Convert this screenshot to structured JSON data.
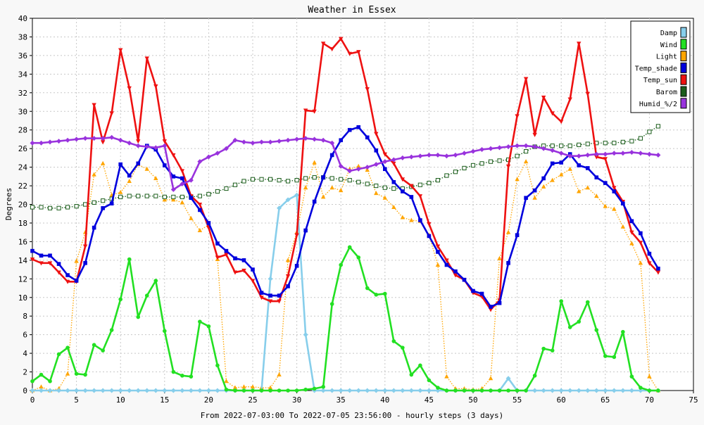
{
  "chart_data": {
    "type": "line",
    "title": "Weather in Essex",
    "xlabel": "From 2022-07-03:00 To 2022-07-05 23:56:00 - hourly steps (3 days)",
    "ylabel": "Degrees",
    "xlim": [
      0,
      75
    ],
    "ylim": [
      0,
      40
    ],
    "xticks": [
      0,
      5,
      10,
      15,
      20,
      25,
      30,
      35,
      40,
      45,
      50,
      55,
      60,
      65,
      70,
      75
    ],
    "yticks": [
      0,
      2,
      4,
      6,
      8,
      10,
      12,
      14,
      16,
      18,
      20,
      22,
      24,
      26,
      28,
      30,
      32,
      34,
      36,
      38,
      40
    ],
    "grid": true,
    "legend_position": "top-right",
    "x": [
      0,
      1,
      2,
      3,
      4,
      5,
      6,
      7,
      8,
      9,
      10,
      11,
      12,
      13,
      14,
      15,
      16,
      17,
      18,
      19,
      20,
      21,
      22,
      23,
      24,
      25,
      26,
      27,
      28,
      29,
      30,
      31,
      32,
      33,
      34,
      35,
      36,
      37,
      38,
      39,
      40,
      41,
      42,
      43,
      44,
      45,
      46,
      47,
      48,
      49,
      50,
      51,
      52,
      53,
      54,
      55,
      56,
      57,
      58,
      59,
      60,
      61,
      62,
      63,
      64,
      65,
      66,
      67,
      68,
      69,
      70,
      71
    ],
    "series": [
      {
        "name": "Damp",
        "color": "#87ceeb",
        "marker": "star",
        "values": [
          0,
          0,
          0,
          0,
          0,
          0,
          0,
          0,
          0,
          0,
          0,
          0,
          0,
          0,
          0,
          0,
          0,
          0,
          0,
          0,
          0,
          0,
          0,
          0,
          0,
          0,
          0,
          12,
          19.6,
          20.5,
          21,
          6,
          0,
          0,
          0,
          0,
          0,
          0,
          0,
          0,
          0,
          0,
          0,
          0,
          0,
          0,
          0,
          0,
          0,
          0,
          0,
          0,
          0,
          0,
          1.3,
          0,
          0,
          0,
          0,
          0,
          0,
          0,
          0,
          0,
          0,
          0,
          0,
          0,
          0,
          0,
          0,
          0
        ]
      },
      {
        "name": "Wind",
        "color": "#22e022",
        "marker": "circle",
        "values": [
          1,
          1.7,
          1,
          3.9,
          4.6,
          1.8,
          1.7,
          4.9,
          4.3,
          6.5,
          9.8,
          14.1,
          7.9,
          10.2,
          11.8,
          6.4,
          2,
          1.6,
          1.5,
          7.4,
          6.9,
          2.7,
          0.1,
          0,
          0,
          0,
          0,
          0,
          0,
          0,
          0,
          0.1,
          0.2,
          0.4,
          9.3,
          13.5,
          15.4,
          14.3,
          11,
          10.3,
          10.4,
          5.3,
          4.6,
          1.7,
          2.7,
          1.1,
          0.3,
          0,
          0,
          0,
          0,
          0,
          0,
          0,
          0,
          0,
          0,
          1.6,
          4.5,
          4.3,
          9.6,
          6.8,
          7.4,
          9.5,
          6.5,
          3.7,
          3.6,
          6.3,
          1.5,
          0.3,
          0,
          0
        ]
      },
      {
        "name": "Light",
        "color": "#ffa500",
        "marker": "triangle",
        "values": [
          0,
          0.4,
          0,
          0.2,
          1.8,
          13.9,
          17,
          23.2,
          24.4,
          21,
          21.3,
          22.5,
          24.3,
          23.8,
          22.8,
          20.5,
          20.5,
          20.2,
          18.5,
          17.2,
          17.8,
          14.1,
          1,
          0.3,
          0.4,
          0.4,
          0.3,
          0.3,
          1.7,
          14,
          17,
          21.8,
          24.5,
          20.8,
          21.8,
          21.5,
          23.8,
          24.1,
          23.7,
          21.2,
          20.7,
          19.7,
          18.6,
          18.3,
          18.2,
          16.7,
          13.5,
          1.5,
          0.2,
          0.2,
          0.1,
          0.2,
          1.3,
          14.2,
          17,
          22.7,
          24.6,
          20.7,
          21.9,
          22.6,
          23.2,
          23.8,
          21.4,
          21.8,
          20.9,
          19.8,
          19.5,
          17.6,
          15.8,
          13.7,
          1.5,
          0
        ]
      },
      {
        "name": "Temp_shade",
        "color": "#0000dd",
        "marker": "square",
        "values": [
          15,
          14.5,
          14.5,
          13.6,
          12.4,
          11.8,
          13.7,
          17.5,
          19.6,
          20.1,
          24.3,
          23.1,
          24.4,
          26.3,
          25.9,
          24.2,
          23,
          22.8,
          20.7,
          19.4,
          18,
          15.8,
          15,
          14.2,
          14,
          13,
          10.5,
          10.2,
          10.2,
          11.2,
          13.4,
          17.2,
          20.3,
          22.9,
          25.3,
          26.9,
          28,
          28.3,
          27.2,
          25.8,
          23.8,
          22.4,
          21.4,
          20.8,
          18.3,
          16.6,
          14.9,
          13.5,
          12.8,
          11.9,
          10.7,
          10.4,
          9,
          9.4,
          13.7,
          16.7,
          20.7,
          21.5,
          22.8,
          24.4,
          24.5,
          25.4,
          24.2,
          23.9,
          22.9,
          22.3,
          21.4,
          20.1,
          18.2,
          16.9,
          14.7,
          13.1
        ]
      },
      {
        "name": "Temp_sun",
        "color": "#ee1111",
        "marker": "invtriangle",
        "values": [
          14.1,
          13.7,
          13.7,
          12.7,
          11.7,
          11.7,
          15.5,
          30.7,
          26.7,
          29.8,
          36.6,
          32.5,
          26.8,
          35.7,
          32.7,
          26.8,
          25.3,
          23.6,
          20.9,
          20,
          17.5,
          14.3,
          14.6,
          12.7,
          12.9,
          11.8,
          10,
          9.6,
          9.6,
          12.3,
          16.7,
          30.1,
          30,
          37.3,
          36.7,
          37.8,
          36.2,
          36.4,
          32.4,
          27.6,
          25.4,
          24.4,
          22.7,
          22,
          20.9,
          17.9,
          15.5,
          14,
          12.4,
          11.9,
          10.5,
          10.1,
          8.7,
          9.7,
          24.1,
          29.5,
          33.5,
          27.5,
          31.5,
          29.8,
          28.9,
          31.3,
          37.3,
          31.9,
          25.1,
          24.9,
          21.8,
          20.3,
          17,
          15.9,
          13.7,
          12.7
        ]
      },
      {
        "name": "Barom",
        "color": "#1a5c1a",
        "marker": "opensquare",
        "values": [
          19.7,
          19.7,
          19.6,
          19.6,
          19.7,
          19.8,
          20,
          20.2,
          20.4,
          20.6,
          20.8,
          20.9,
          20.9,
          20.9,
          20.9,
          20.8,
          20.8,
          20.8,
          20.8,
          20.9,
          21.1,
          21.4,
          21.7,
          22.1,
          22.5,
          22.7,
          22.7,
          22.7,
          22.6,
          22.5,
          22.6,
          22.8,
          22.9,
          22.9,
          22.8,
          22.7,
          22.6,
          22.4,
          22.2,
          22,
          21.8,
          21.7,
          21.7,
          21.9,
          22.1,
          22.3,
          22.6,
          23.1,
          23.5,
          23.9,
          24.2,
          24.4,
          24.6,
          24.7,
          24.8,
          25.2,
          25.7,
          26.2,
          26.3,
          26.3,
          26.3,
          26.3,
          26.4,
          26.5,
          26.6,
          26.6,
          26.6,
          26.7,
          26.8,
          27.1,
          27.8,
          28.4
        ]
      },
      {
        "name": "Humid_%/2",
        "color": "#9933dd",
        "marker": "star",
        "values": [
          26.6,
          26.6,
          26.7,
          26.8,
          26.9,
          27,
          27.1,
          27.1,
          27.1,
          27.2,
          26.9,
          26.6,
          26.3,
          26.2,
          26.1,
          26.3,
          21.6,
          22.2,
          22.6,
          24.6,
          25.1,
          25.5,
          26,
          26.9,
          26.7,
          26.6,
          26.7,
          26.7,
          26.8,
          26.9,
          27,
          27.1,
          27,
          26.9,
          26.6,
          24.1,
          23.6,
          23.8,
          24,
          24.3,
          24.6,
          24.8,
          25,
          25.1,
          25.2,
          25.3,
          25.3,
          25.2,
          25.3,
          25.5,
          25.7,
          25.9,
          26,
          26.1,
          26.2,
          26.3,
          26.3,
          26.2,
          26,
          25.8,
          25.5,
          25.2,
          25.2,
          25.3,
          25.4,
          25.4,
          25.5,
          25.5,
          25.6,
          25.5,
          25.4,
          25.3
        ]
      }
    ]
  }
}
